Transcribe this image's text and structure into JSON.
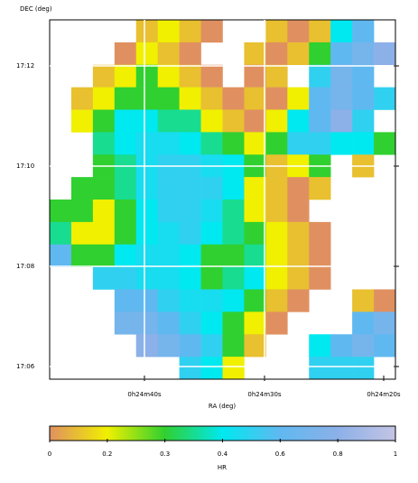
{
  "chart_data": {
    "type": "heatmap",
    "ylabel": "DEC (deg)",
    "xlabel": "RA (deg)",
    "y_labels": [
      "17:12",
      "17:10",
      "17:08",
      "17:06"
    ],
    "x_labels": [
      "0h24m40s",
      "0h24m30s",
      "0h24m20s"
    ],
    "colorbar_label": "HR",
    "colorbar_ticks": [
      0,
      0.2,
      0.3,
      0.4,
      0.6,
      0.8,
      1
    ],
    "colormap": [
      "#e09060",
      "#f0f000",
      "#30d030",
      "#00e8f0",
      "#60b8f0",
      "#8cb0e8",
      "#c4c4e4"
    ],
    "grid": true,
    "values": [
      [
        null,
        null,
        null,
        null,
        0.1,
        0.2,
        0.1,
        0.0,
        null,
        null,
        0.1,
        0.0,
        0.1,
        0.4,
        0.6,
        null
      ],
      [
        null,
        null,
        null,
        0.0,
        0.2,
        0.1,
        0.0,
        null,
        null,
        0.1,
        0.0,
        0.1,
        0.3,
        0.6,
        0.7,
        0.8
      ],
      [
        null,
        null,
        0.1,
        0.2,
        0.3,
        0.2,
        0.1,
        0.0,
        null,
        0.0,
        0.1,
        null,
        0.5,
        0.7,
        0.6,
        null
      ],
      [
        null,
        0.1,
        0.2,
        0.3,
        0.3,
        0.3,
        0.2,
        0.1,
        0.0,
        0.1,
        0.0,
        0.2,
        0.6,
        0.7,
        0.6,
        0.5
      ],
      [
        null,
        0.2,
        0.3,
        0.4,
        0.4,
        0.35,
        0.35,
        0.2,
        0.1,
        0.0,
        0.2,
        0.4,
        0.6,
        0.8,
        0.5,
        null
      ],
      [
        null,
        null,
        0.35,
        0.4,
        0.45,
        0.45,
        0.4,
        0.35,
        0.3,
        0.2,
        0.3,
        0.5,
        0.5,
        0.4,
        0.4,
        0.3
      ],
      [
        null,
        null,
        0.3,
        0.35,
        0.45,
        0.5,
        0.5,
        0.45,
        0.4,
        0.3,
        0.1,
        0.2,
        0.3,
        null,
        0.1,
        null
      ],
      [
        null,
        0.3,
        0.3,
        0.35,
        0.45,
        0.5,
        0.5,
        0.5,
        0.4,
        0.2,
        0.1,
        0.0,
        0.1,
        null,
        null,
        null
      ],
      [
        0.3,
        0.3,
        0.2,
        0.3,
        0.4,
        0.5,
        0.5,
        0.45,
        0.35,
        0.2,
        0.1,
        0.0,
        null,
        null,
        null,
        null
      ],
      [
        0.35,
        0.2,
        0.2,
        0.3,
        0.4,
        0.45,
        0.5,
        0.4,
        0.35,
        0.3,
        0.2,
        0.1,
        0.0,
        null,
        null,
        null
      ],
      [
        0.6,
        0.3,
        0.3,
        0.4,
        0.45,
        0.45,
        0.4,
        0.3,
        0.3,
        0.35,
        0.2,
        0.1,
        0.0,
        null,
        null,
        null
      ],
      [
        null,
        null,
        0.5,
        0.5,
        0.45,
        0.45,
        0.4,
        0.3,
        0.35,
        0.4,
        0.2,
        0.1,
        0.0,
        null,
        null,
        null
      ],
      [
        null,
        null,
        null,
        0.6,
        0.6,
        0.5,
        0.45,
        0.45,
        0.4,
        0.3,
        0.1,
        0.0,
        null,
        null,
        0.1,
        0.0
      ],
      [
        null,
        null,
        null,
        0.7,
        0.7,
        0.6,
        0.5,
        0.4,
        0.3,
        0.2,
        0.0,
        null,
        null,
        null,
        0.6,
        0.7
      ],
      [
        null,
        null,
        null,
        null,
        0.8,
        0.7,
        0.6,
        0.5,
        0.3,
        0.1,
        null,
        null,
        0.4,
        0.6,
        0.7,
        0.6
      ],
      [
        null,
        null,
        null,
        null,
        null,
        null,
        0.5,
        0.4,
        0.2,
        null,
        null,
        null,
        0.5,
        0.5,
        0.5,
        null
      ]
    ]
  }
}
